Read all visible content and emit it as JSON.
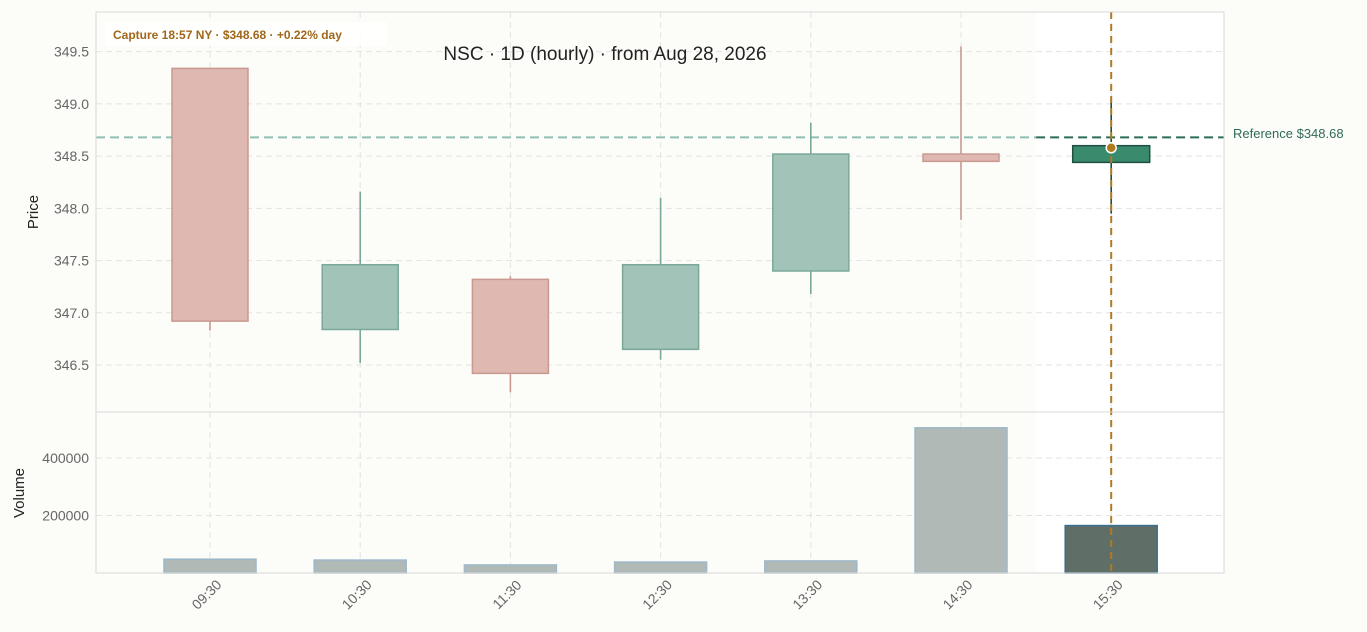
{
  "chart_data": {
    "type": "candlestick",
    "title": "NSC  ·  1D (hourly)  ·  from Aug 28, 2026",
    "capture_label": "Capture 18:57 NY · $348.68 · +0.22% day",
    "reference_label": "Reference $348.68",
    "reference_price": 348.68,
    "ylabel_price": "Price",
    "ylabel_volume": "Volume",
    "price_ylim": [
      346.05,
      349.88
    ],
    "price_ticks": [
      346.5,
      347.0,
      347.5,
      348.0,
      348.5,
      349.0,
      349.5
    ],
    "volume_ylim": [
      0,
      560000
    ],
    "volume_ticks": [
      200000,
      400000
    ],
    "categories": [
      "09:30",
      "10:30",
      "11:30",
      "12:30",
      "13:30",
      "14:30",
      "15:30"
    ],
    "candles": [
      {
        "time": "09:30",
        "open": 349.34,
        "high": 349.34,
        "low": 346.83,
        "close": 346.92
      },
      {
        "time": "10:30",
        "open": 346.84,
        "high": 348.16,
        "low": 346.52,
        "close": 347.46
      },
      {
        "time": "11:30",
        "open": 347.32,
        "high": 347.35,
        "low": 346.24,
        "close": 346.42
      },
      {
        "time": "12:30",
        "open": 346.65,
        "high": 348.1,
        "low": 346.55,
        "close": 347.46
      },
      {
        "time": "13:30",
        "open": 347.4,
        "high": 348.82,
        "low": 347.18,
        "close": 348.52
      },
      {
        "time": "14:30",
        "open": 348.52,
        "high": 349.55,
        "low": 347.89,
        "close": 348.45
      },
      {
        "time": "15:30",
        "open": 348.44,
        "high": 349.05,
        "low": 347.95,
        "close": 348.6
      }
    ],
    "volumes": [
      48000,
      45000,
      28000,
      38000,
      42000,
      505000,
      165000
    ],
    "highlight_index": 6,
    "last_price": 348.58,
    "colors": {
      "up": "#a1c3b8",
      "up_edge": "#7aa99a",
      "down": "#deb8b1",
      "down_edge": "#c99990",
      "highlight_body": "#3a8a6e",
      "highlight_edge": "#1f4f40",
      "volume": "#b1b9b6",
      "volume_edge": "#9cb8c9",
      "volume_highlight": "#5f6f67",
      "volume_highlight_edge": "#3b6f8f",
      "reference": "#8fbfb2",
      "reference_highlight": "#2e6b5a",
      "capture": "#b07a1e",
      "grid": "#e3e3e3",
      "plot_bg": "#fcfcf9",
      "highlight_bg": "#ffffff"
    },
    "grid": true
  }
}
